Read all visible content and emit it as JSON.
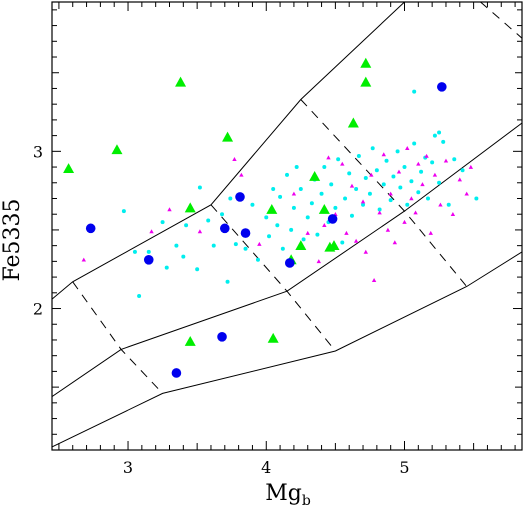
{
  "chart_data": {
    "type": "scatter",
    "xlabel": "Mg",
    "xlabel_subscript": "b",
    "ylabel": "Fe5335",
    "xlim": [
      2.45,
      5.85
    ],
    "ylim": [
      1.1,
      3.95
    ],
    "x_ticks": [
      3,
      4,
      5
    ],
    "y_ticks": [
      2,
      3
    ],
    "x_tick_labels": [
      "3",
      "4",
      "5"
    ],
    "y_tick_labels": [
      "2",
      "3"
    ],
    "grid": false,
    "colors": {
      "blue_circles": "#0000ee",
      "green_triangles": "#00ee00",
      "cyan_dots": "#00eeee",
      "magenta_triangles": "#ee00ee",
      "lines": "#000000"
    },
    "model_grid": {
      "solid_lines": [
        [
          [
            2.45,
            2.06
          ],
          [
            2.6,
            2.17
          ],
          [
            3.6,
            2.66
          ],
          [
            4.25,
            3.33
          ],
          [
            5.0,
            3.95
          ]
        ],
        [
          [
            2.45,
            1.44
          ],
          [
            2.95,
            1.74
          ],
          [
            4.15,
            2.11
          ],
          [
            5.0,
            2.62
          ],
          [
            5.85,
            3.18
          ]
        ],
        [
          [
            2.45,
            1.12
          ],
          [
            3.25,
            1.46
          ],
          [
            4.5,
            1.73
          ],
          [
            5.45,
            2.14
          ],
          [
            5.85,
            2.36
          ]
        ]
      ],
      "dashed_lines": [
        [
          [
            2.6,
            2.17
          ],
          [
            2.95,
            1.74
          ],
          [
            3.25,
            1.46
          ]
        ],
        [
          [
            3.6,
            2.66
          ],
          [
            4.15,
            2.11
          ],
          [
            4.5,
            1.73
          ]
        ],
        [
          [
            4.25,
            3.33
          ],
          [
            5.0,
            2.62
          ],
          [
            5.45,
            2.14
          ]
        ],
        [
          [
            5.55,
            3.95
          ],
          [
            5.85,
            3.72
          ]
        ]
      ]
    },
    "series": [
      {
        "marker": "circle-large",
        "color": "#0000ee",
        "points": [
          [
            2.73,
            2.51
          ],
          [
            3.15,
            2.31
          ],
          [
            3.35,
            1.59
          ],
          [
            3.68,
            1.82
          ],
          [
            3.7,
            2.51
          ],
          [
            3.81,
            2.71
          ],
          [
            3.85,
            2.48
          ],
          [
            4.17,
            2.29
          ],
          [
            4.48,
            2.57
          ],
          [
            5.27,
            3.41
          ]
        ]
      },
      {
        "marker": "triangle-large",
        "color": "#00ee00",
        "points": [
          [
            2.57,
            2.89
          ],
          [
            2.92,
            3.01
          ],
          [
            3.38,
            3.44
          ],
          [
            3.45,
            1.79
          ],
          [
            3.45,
            2.64
          ],
          [
            3.72,
            3.09
          ],
          [
            4.04,
            2.63
          ],
          [
            4.05,
            1.81
          ],
          [
            4.18,
            2.31
          ],
          [
            4.25,
            2.4
          ],
          [
            4.35,
            2.84
          ],
          [
            4.42,
            2.63
          ],
          [
            4.46,
            2.39
          ],
          [
            4.49,
            2.4
          ],
          [
            4.63,
            3.18
          ],
          [
            4.72,
            3.44
          ],
          [
            4.72,
            3.56
          ]
        ]
      },
      {
        "marker": "dot",
        "color": "#00eeee",
        "points": [
          [
            2.97,
            2.62
          ],
          [
            3.05,
            2.36
          ],
          [
            3.08,
            2.08
          ],
          [
            3.15,
            2.36
          ],
          [
            3.25,
            2.55
          ],
          [
            3.28,
            2.26
          ],
          [
            3.35,
            2.4
          ],
          [
            3.4,
            2.33
          ],
          [
            3.42,
            2.53
          ],
          [
            3.5,
            2.25
          ],
          [
            3.52,
            2.77
          ],
          [
            3.58,
            2.56
          ],
          [
            3.62,
            2.4
          ],
          [
            3.68,
            2.6
          ],
          [
            3.72,
            2.17
          ],
          [
            3.74,
            2.7
          ],
          [
            3.78,
            2.41
          ],
          [
            3.85,
            2.38
          ],
          [
            3.9,
            2.66
          ],
          [
            3.94,
            2.31
          ],
          [
            4.0,
            2.58
          ],
          [
            4.02,
            2.46
          ],
          [
            4.05,
            2.76
          ],
          [
            4.08,
            2.53
          ],
          [
            4.1,
            2.71
          ],
          [
            4.12,
            2.38
          ],
          [
            4.15,
            2.85
          ],
          [
            4.18,
            2.5
          ],
          [
            4.2,
            2.64
          ],
          [
            4.22,
            2.9
          ],
          [
            4.25,
            2.76
          ],
          [
            4.27,
            2.44
          ],
          [
            4.3,
            2.58
          ],
          [
            4.33,
            2.67
          ],
          [
            4.35,
            2.82
          ],
          [
            4.37,
            2.47
          ],
          [
            4.4,
            2.73
          ],
          [
            4.42,
            2.9
          ],
          [
            4.45,
            2.55
          ],
          [
            4.47,
            2.79
          ],
          [
            4.5,
            2.64
          ],
          [
            4.52,
            2.95
          ],
          [
            4.55,
            2.42
          ],
          [
            4.57,
            2.7
          ],
          [
            4.6,
            2.86
          ],
          [
            4.62,
            2.59
          ],
          [
            4.65,
            2.76
          ],
          [
            4.67,
            2.97
          ],
          [
            4.7,
            2.66
          ],
          [
            4.72,
            2.83
          ],
          [
            4.75,
            2.73
          ],
          [
            4.77,
            3.02
          ],
          [
            4.8,
            2.88
          ],
          [
            4.82,
            2.63
          ],
          [
            4.85,
            2.79
          ],
          [
            4.87,
            2.94
          ],
          [
            4.9,
            2.69
          ],
          [
            4.92,
            2.84
          ],
          [
            4.95,
            3.0
          ],
          [
            4.97,
            2.77
          ],
          [
            5.0,
            2.9
          ],
          [
            5.02,
            2.66
          ],
          [
            5.05,
            2.81
          ],
          [
            5.07,
            3.05
          ],
          [
            5.1,
            2.74
          ],
          [
            5.12,
            2.87
          ],
          [
            5.15,
            2.96
          ],
          [
            5.17,
            2.7
          ],
          [
            5.2,
            2.93
          ],
          [
            5.22,
            3.1
          ],
          [
            5.25,
            2.8
          ],
          [
            5.28,
            3.06
          ],
          [
            5.32,
            2.66
          ],
          [
            5.36,
            2.95
          ],
          [
            5.42,
            2.88
          ],
          [
            5.52,
            2.7
          ],
          [
            5.07,
            3.38
          ],
          [
            5.25,
            3.12
          ]
        ]
      },
      {
        "marker": "triangle-small",
        "color": "#ee00ee",
        "points": [
          [
            2.68,
            2.31
          ],
          [
            3.17,
            2.49
          ],
          [
            3.3,
            2.63
          ],
          [
            3.52,
            2.49
          ],
          [
            3.77,
            2.95
          ],
          [
            3.82,
            2.85
          ],
          [
            3.95,
            2.41
          ],
          [
            4.2,
            2.73
          ],
          [
            4.3,
            2.48
          ],
          [
            4.38,
            2.3
          ],
          [
            4.42,
            2.53
          ],
          [
            4.45,
            2.96
          ],
          [
            4.5,
            2.6
          ],
          [
            4.55,
            2.92
          ],
          [
            4.58,
            2.48
          ],
          [
            4.62,
            2.78
          ],
          [
            4.65,
            2.43
          ],
          [
            4.7,
            2.68
          ],
          [
            4.72,
            2.36
          ],
          [
            4.76,
            2.85
          ],
          [
            4.78,
            2.18
          ],
          [
            4.82,
            2.61
          ],
          [
            4.85,
            2.98
          ],
          [
            4.88,
            2.5
          ],
          [
            4.9,
            2.73
          ],
          [
            4.93,
            2.42
          ],
          [
            4.96,
            2.87
          ],
          [
            5.0,
            2.55
          ],
          [
            5.02,
            3.02
          ],
          [
            5.05,
            2.7
          ],
          [
            5.08,
            2.61
          ],
          [
            5.1,
            2.92
          ],
          [
            5.13,
            2.79
          ],
          [
            5.16,
            2.97
          ],
          [
            5.19,
            2.48
          ],
          [
            5.22,
            2.85
          ],
          [
            5.26,
            2.66
          ],
          [
            5.3,
            2.94
          ],
          [
            5.35,
            2.6
          ],
          [
            5.4,
            2.82
          ],
          [
            5.45,
            2.73
          ],
          [
            5.48,
            2.9
          ]
        ]
      }
    ]
  }
}
